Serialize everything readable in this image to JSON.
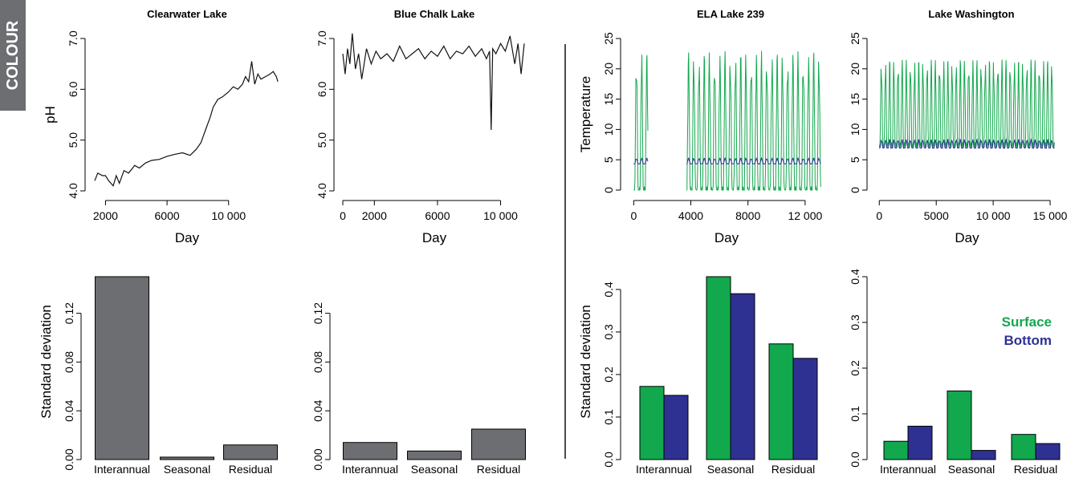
{
  "side_label": "COLOUR",
  "colors": {
    "surface": "#12a84d",
    "bottom": "#2e3192",
    "bar_grey": "#6d6e71",
    "line": "#111111"
  },
  "chart_data": [
    {
      "id": "clearwater-ph",
      "type": "line",
      "title": "Clearwater Lake",
      "xlabel": "Day",
      "ylabel": "pH",
      "xlim": [
        1300,
        13300
      ],
      "ylim": [
        4.0,
        7.0
      ],
      "xticks": [
        {
          "v": 2000,
          "label": "2000"
        },
        {
          "v": 6000,
          "label": "6000"
        },
        {
          "v": 10000,
          "label": "10 000"
        }
      ],
      "yticks": [
        {
          "v": 4.0,
          "label": "4.0"
        },
        {
          "v": 5.0,
          "label": "5.0"
        },
        {
          "v": 6.0,
          "label": "6.0"
        },
        {
          "v": 7.0,
          "label": "7.0"
        }
      ],
      "series": [
        {
          "color_key": "line",
          "x": [
            1300,
            1500,
            1800,
            2000,
            2200,
            2500,
            2700,
            2900,
            3200,
            3500,
            3900,
            4200,
            4600,
            5000,
            5500,
            6000,
            6500,
            7000,
            7500,
            7900,
            8200,
            8500,
            8800,
            9000,
            9300,
            9600,
            10000,
            10300,
            10600,
            10900,
            11100,
            11300,
            11500,
            11700,
            11900,
            12100,
            12400,
            12700,
            12900,
            13100,
            13200
          ],
          "y": [
            4.2,
            4.35,
            4.3,
            4.3,
            4.2,
            4.1,
            4.3,
            4.15,
            4.4,
            4.35,
            4.5,
            4.45,
            4.55,
            4.6,
            4.62,
            4.68,
            4.72,
            4.75,
            4.7,
            4.82,
            4.95,
            5.2,
            5.45,
            5.65,
            5.8,
            5.85,
            5.95,
            6.05,
            6.0,
            6.1,
            6.25,
            6.15,
            6.55,
            6.1,
            6.3,
            6.2,
            6.25,
            6.3,
            6.35,
            6.25,
            6.15
          ]
        }
      ]
    },
    {
      "id": "bluechalk-ph",
      "type": "line",
      "title": "Blue Chalk Lake",
      "xlabel": "Day",
      "ylabel": "",
      "xlim": [
        0,
        11600
      ],
      "ylim": [
        4.0,
        7.0
      ],
      "xticks": [
        {
          "v": 0,
          "label": "0"
        },
        {
          "v": 2000,
          "label": "2000"
        },
        {
          "v": 6000,
          "label": "6000"
        },
        {
          "v": 10000,
          "label": "10 000"
        }
      ],
      "yticks": [
        {
          "v": 4.0,
          "label": "4.0"
        },
        {
          "v": 5.0,
          "label": "5.0"
        },
        {
          "v": 6.0,
          "label": "6.0"
        },
        {
          "v": 7.0,
          "label": "7.0"
        }
      ],
      "series": [
        {
          "color_key": "line",
          "x": [
            0,
            150,
            300,
            450,
            600,
            800,
            1000,
            1200,
            1500,
            1800,
            2100,
            2400,
            2800,
            3200,
            3600,
            4000,
            4400,
            4800,
            5200,
            5600,
            6000,
            6400,
            6800,
            7200,
            7600,
            8000,
            8400,
            8800,
            9100,
            9300,
            9400,
            9500,
            9700,
            10000,
            10300,
            10600,
            10900,
            11100,
            11300,
            11500
          ],
          "y": [
            6.7,
            6.3,
            6.8,
            6.5,
            7.1,
            6.4,
            6.7,
            6.2,
            6.8,
            6.5,
            6.75,
            6.6,
            6.7,
            6.55,
            6.85,
            6.6,
            6.7,
            6.8,
            6.6,
            6.75,
            6.65,
            6.85,
            6.6,
            6.75,
            6.7,
            6.85,
            6.65,
            6.8,
            6.6,
            6.75,
            5.2,
            6.8,
            6.7,
            6.9,
            6.75,
            7.05,
            6.5,
            6.9,
            6.3,
            6.9
          ]
        }
      ]
    },
    {
      "id": "ela239-temp",
      "type": "line",
      "title": "ELA Lake 239",
      "xlabel": "Day",
      "ylabel": "Temperature",
      "xlim": [
        -300,
        13300
      ],
      "ylim": [
        0,
        25
      ],
      "xticks": [
        {
          "v": 0,
          "label": "0"
        },
        {
          "v": 4000,
          "label": "4000"
        },
        {
          "v": 8000,
          "label": "8000"
        },
        {
          "v": 12000,
          "label": "12 000"
        }
      ],
      "yticks": [
        {
          "v": 0,
          "label": "0"
        },
        {
          "v": 5,
          "label": "5"
        },
        {
          "v": 10,
          "label": "10"
        },
        {
          "v": 15,
          "label": "15"
        },
        {
          "v": 20,
          "label": "20"
        },
        {
          "v": 25,
          "label": "25"
        }
      ],
      "seasonal": [
        {
          "name": "",
          "color_key": "surface",
          "segments": [
            [
              0,
              1000
            ],
            [
              3700,
              13100
            ]
          ],
          "base": 4,
          "amp": 19.5,
          "period": 365,
          "offset": 100
        },
        {
          "name": "",
          "color_key": "bottom",
          "segments": [
            [
              0,
              1000
            ],
            [
              3700,
              13100
            ]
          ],
          "base": 4.5,
          "amp": 0.8,
          "period": 365,
          "offset": 100
        }
      ]
    },
    {
      "id": "washington-temp",
      "type": "line",
      "title": "Lake Washington",
      "xlabel": "Day",
      "ylabel": "",
      "xlim": [
        -300,
        15700
      ],
      "ylim": [
        0,
        25
      ],
      "xticks": [
        {
          "v": 0,
          "label": "0"
        },
        {
          "v": 5000,
          "label": "5000"
        },
        {
          "v": 10000,
          "label": "10 000"
        },
        {
          "v": 15000,
          "label": "15 000"
        }
      ],
      "yticks": [
        {
          "v": 0,
          "label": "0"
        },
        {
          "v": 5,
          "label": "5"
        },
        {
          "v": 10,
          "label": "10"
        },
        {
          "v": 15,
          "label": "15"
        },
        {
          "v": 20,
          "label": "20"
        },
        {
          "v": 25,
          "label": "25"
        }
      ],
      "seasonal": [
        {
          "name": "",
          "color_key": "surface",
          "segments": [
            [
              0,
              15400
            ]
          ],
          "base": 10,
          "amp": 12,
          "period": 365,
          "offset": 90
        },
        {
          "name": "",
          "color_key": "bottom",
          "segments": [
            [
              0,
              15400
            ]
          ],
          "base": 7.2,
          "amp": 1.2,
          "period": 365,
          "offset": 90
        }
      ]
    },
    {
      "id": "clearwater-sd",
      "type": "bar",
      "title": "",
      "xlabel": "",
      "ylabel": "Standard deviation",
      "categories": [
        "Interannual",
        "Seasonal",
        "Residual"
      ],
      "ylim": [
        0,
        0.15
      ],
      "yticks": [
        {
          "v": 0,
          "label": "0.00"
        },
        {
          "v": 0.04,
          "label": "0.04"
        },
        {
          "v": 0.08,
          "label": "0.08"
        },
        {
          "v": 0.12,
          "label": "0.12"
        }
      ],
      "series": [
        {
          "name": "",
          "color_key": "bar_grey",
          "values": [
            0.15,
            0.002,
            0.012
          ]
        }
      ]
    },
    {
      "id": "bluechalk-sd",
      "type": "bar",
      "title": "",
      "xlabel": "",
      "ylabel": "",
      "categories": [
        "Interannual",
        "Seasonal",
        "Residual"
      ],
      "ylim": [
        0,
        0.15
      ],
      "yticks": [
        {
          "v": 0,
          "label": "0.00"
        },
        {
          "v": 0.04,
          "label": "0.04"
        },
        {
          "v": 0.08,
          "label": "0.08"
        },
        {
          "v": 0.12,
          "label": "0.12"
        }
      ],
      "series": [
        {
          "name": "",
          "color_key": "bar_grey",
          "values": [
            0.014,
            0.007,
            0.025
          ]
        }
      ]
    },
    {
      "id": "ela239-sd",
      "type": "bar",
      "title": "",
      "xlabel": "",
      "ylabel": "Standard deviation",
      "categories": [
        "Interannual",
        "Seasonal",
        "Residual"
      ],
      "ylim": [
        0,
        0.43
      ],
      "yticks": [
        {
          "v": 0.0,
          "label": "0.0"
        },
        {
          "v": 0.1,
          "label": "0.1"
        },
        {
          "v": 0.2,
          "label": "0.2"
        },
        {
          "v": 0.3,
          "label": "0.3"
        },
        {
          "v": 0.4,
          "label": "0.4"
        }
      ],
      "series": [
        {
          "name": "",
          "color_key": "surface",
          "values": [
            0.172,
            0.43,
            0.272
          ]
        },
        {
          "name": "",
          "color_key": "bottom",
          "values": [
            0.151,
            0.39,
            0.238
          ]
        }
      ]
    },
    {
      "id": "washington-sd",
      "type": "bar",
      "title": "",
      "xlabel": "",
      "ylabel": "",
      "categories": [
        "Interannual",
        "Seasonal",
        "Residual"
      ],
      "ylim": [
        0,
        0.4
      ],
      "yticks": [
        {
          "v": 0.0,
          "label": "0.0"
        },
        {
          "v": 0.1,
          "label": "0.1"
        },
        {
          "v": 0.2,
          "label": "0.2"
        },
        {
          "v": 0.3,
          "label": "0.3"
        },
        {
          "v": 0.4,
          "label": "0.4"
        }
      ],
      "legend": {
        "placement": "top-right",
        "entries": [
          {
            "label": "Surface",
            "color_key": "surface"
          },
          {
            "label": "Bottom",
            "color_key": "bottom"
          }
        ]
      },
      "series": [
        {
          "name": "Surface",
          "color_key": "surface",
          "values": [
            0.04,
            0.15,
            0.055
          ]
        },
        {
          "name": "Bottom",
          "color_key": "bottom",
          "values": [
            0.073,
            0.02,
            0.035
          ]
        }
      ]
    }
  ]
}
